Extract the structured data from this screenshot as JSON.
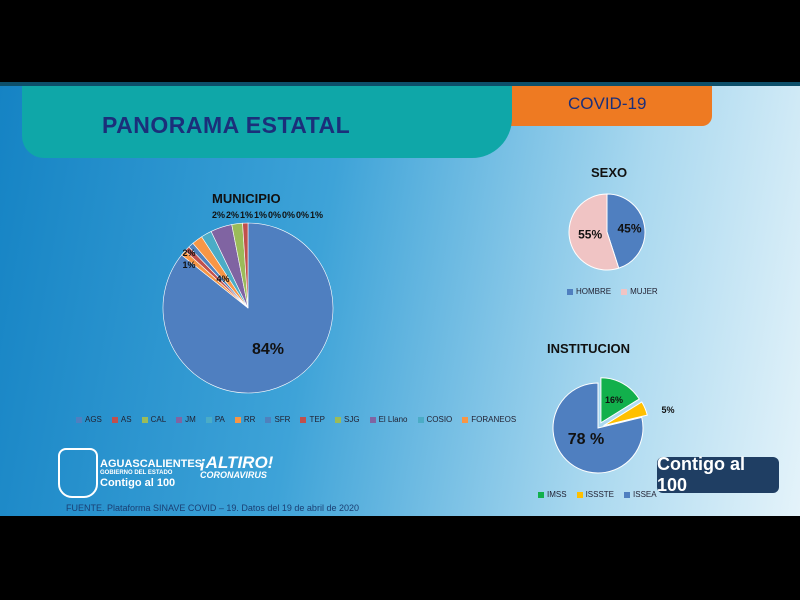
{
  "header": {
    "title": "PANORAMA ESTATAL",
    "tag": "COVID-19"
  },
  "footer": {
    "source": "FUENTE. Plataforma SINAVE COVID – 19. Datos del 19 de abril de 2020",
    "logo_state": "AGUASCALIENTES",
    "logo_gov": "GOBIERNO DEL ESTADO",
    "logo_slogan": "Contigo al 100",
    "altiro": "¡ALTIRO!",
    "altiro_sub": "CORONAVIRUS",
    "badge": "Contigo al 100"
  },
  "chart_data": [
    {
      "type": "pie",
      "title": "MUNICIPIO",
      "legend": "bottom",
      "categories": [
        "AGS",
        "AS",
        "CAL",
        "JM",
        "PA",
        "RR",
        "SFR",
        "TEP",
        "SJG",
        "El Llano",
        "COSIO",
        "FORANEOS"
      ],
      "values": [
        84,
        1,
        2,
        4,
        2,
        2,
        1,
        1,
        0,
        0,
        0,
        1
      ],
      "labels": [
        "84%",
        "1%",
        "2%",
        "4%",
        "2%",
        "2%",
        "1%",
        "1%",
        "0%",
        "0%",
        "0%",
        "1%"
      ],
      "colors": [
        "#4f7fc0",
        "#c0504d",
        "#9bbb59",
        "#8064a2",
        "#4bacc6",
        "#f79646",
        "#4f81bd",
        "#c0504d",
        "#9bbb59",
        "#8064a2",
        "#4bacc6",
        "#f79646"
      ]
    },
    {
      "type": "pie",
      "title": "SEXO",
      "legend": "bottom",
      "categories": [
        "HOMBRE",
        "MUJER"
      ],
      "values": [
        45,
        55
      ],
      "labels": [
        "45%",
        "55%"
      ],
      "colors": [
        "#4f7fc0",
        "#f0c4c4"
      ]
    },
    {
      "type": "pie",
      "title": "INSTITUCION",
      "legend": "bottom",
      "categories": [
        "IMSS",
        "ISSSTE",
        "ISSEA"
      ],
      "values": [
        16,
        5,
        78
      ],
      "labels": [
        "16%",
        "5%",
        "78 %"
      ],
      "colors": [
        "#12b04c",
        "#ffc000",
        "#4f7fc0"
      ]
    }
  ]
}
